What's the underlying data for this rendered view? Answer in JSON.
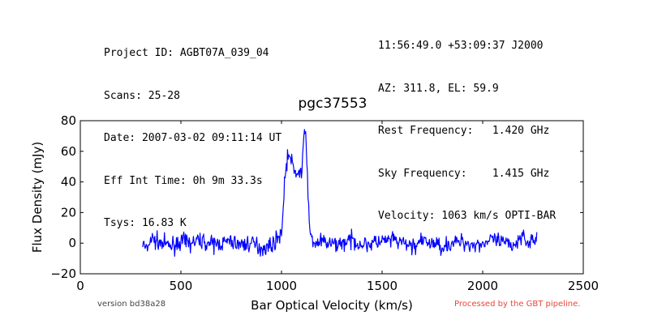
{
  "header_left": [
    "Project ID: AGBT07A_039_04",
    "Scans: 25-28",
    "Date: 2007-03-02 09:11:14 UT",
    "Eff Int Time: 0h 9m 33.3s",
    "Tsys: 16.83 K"
  ],
  "header_right": [
    "11:56:49.0 +53:09:37 J2000",
    "AZ: 311.8, EL: 59.9",
    "Rest Frequency:   1.420 GHz",
    "Sky Frequency:    1.415 GHz",
    "Velocity: 1063 km/s OPTI-BAR"
  ],
  "footer": {
    "version": "version bd38a28",
    "processed": "Processed by the GBT pipeline.",
    "processed_color": "#e8463c"
  },
  "chart_data": {
    "type": "line",
    "title": "pgc37553",
    "xlabel": "Bar Optical Velocity (km/s)",
    "ylabel": "Flux Density (mJy)",
    "xlim": [
      0,
      2500
    ],
    "ylim": [
      -20,
      80
    ],
    "xticks": [
      0,
      500,
      1000,
      1500,
      2000,
      2500
    ],
    "yticks": [
      -20,
      0,
      20,
      40,
      60,
      80
    ],
    "grid": false,
    "line_color": "#0000ff",
    "series": [
      {
        "x": [
          310,
          330,
          350,
          400,
          450,
          500,
          550,
          600,
          650,
          700,
          750,
          800,
          850,
          900,
          940,
          960,
          980,
          1000,
          1005,
          1010,
          1015,
          1020,
          1030,
          1040,
          1050,
          1060,
          1070,
          1080,
          1090,
          1100,
          1105,
          1110,
          1115,
          1120,
          1125,
          1130,
          1135,
          1140,
          1150,
          1160,
          1200,
          1250,
          1300,
          1350,
          1400,
          1450,
          1500,
          1550,
          1600,
          1650,
          1700,
          1750,
          1800,
          1850,
          1900,
          1950,
          2000,
          2050,
          2100,
          2150,
          2185,
          2200,
          2220,
          2240,
          2270
        ],
        "y": [
          0,
          -5,
          3,
          0,
          -2,
          1,
          0,
          2,
          -1,
          0,
          1,
          -1,
          0,
          -3,
          -2,
          0,
          3,
          8,
          15,
          25,
          38,
          48,
          56,
          57,
          53,
          48,
          46,
          47,
          45,
          47,
          53,
          66,
          70,
          74,
          62,
          40,
          20,
          8,
          3,
          0,
          1,
          -1,
          0,
          2,
          -1,
          0,
          1,
          2,
          0,
          -2,
          1,
          0,
          -2,
          0,
          1,
          -1,
          0,
          2,
          0,
          -1,
          2,
          9,
          0,
          2,
          1
        ]
      }
    ]
  }
}
